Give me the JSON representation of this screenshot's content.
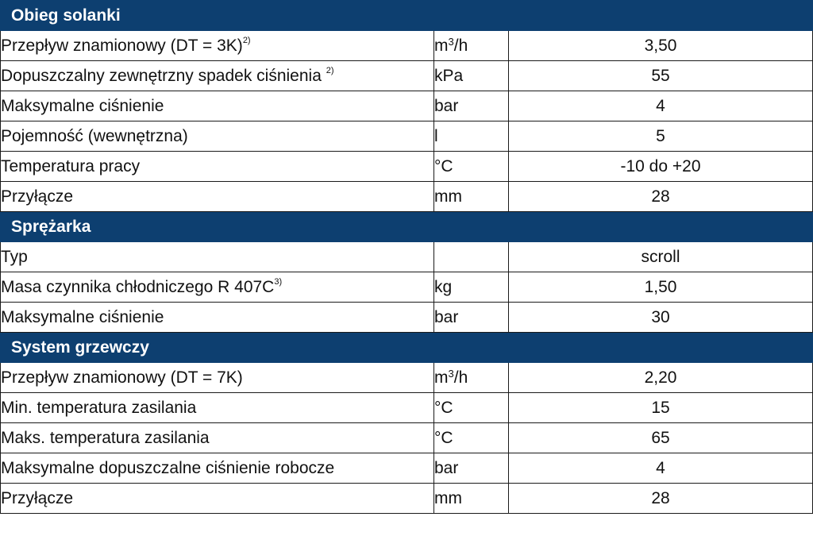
{
  "sections": [
    {
      "title": "Obieg solanki",
      "rows": [
        {
          "name": "Przepływ znamionowy (DT = 3K)",
          "note": "2)",
          "unit": "m",
          "unit_sup": "3",
          "unit_tail": "/h",
          "value": "3,50"
        },
        {
          "name": "Dopuszczalny zewnętrzny spadek ciśnienia ",
          "note": "2)",
          "unit": "kPa",
          "unit_sup": "",
          "unit_tail": "",
          "value": "55"
        },
        {
          "name": "Maksymalne ciśnienie",
          "note": "",
          "unit": "bar",
          "unit_sup": "",
          "unit_tail": "",
          "value": "4"
        },
        {
          "name": "Pojemność (wewnętrzna)",
          "note": "",
          "unit": "l",
          "unit_sup": "",
          "unit_tail": "",
          "value": "5"
        },
        {
          "name": "Temperatura pracy",
          "note": "",
          "unit": "°C",
          "unit_sup": "",
          "unit_tail": "",
          "value": "-10 do +20"
        },
        {
          "name": "Przyłącze",
          "note": "",
          "unit": "mm",
          "unit_sup": "",
          "unit_tail": "",
          "value": "28"
        }
      ]
    },
    {
      "title": "Sprężarka",
      "rows": [
        {
          "name": "Typ",
          "note": "",
          "unit": "",
          "unit_sup": "",
          "unit_tail": "",
          "value": "scroll"
        },
        {
          "name": "Masa czynnika chłodniczego R 407C",
          "note": "3)",
          "unit": "kg",
          "unit_sup": "",
          "unit_tail": "",
          "value": "1,50"
        },
        {
          "name": "Maksymalne ciśnienie",
          "note": "",
          "unit": "bar",
          "unit_sup": "",
          "unit_tail": "",
          "value": "30"
        }
      ]
    },
    {
      "title": "System grzewczy",
      "rows": [
        {
          "name": "Przepływ znamionowy (DT = 7K)",
          "note": "",
          "unit": "m",
          "unit_sup": "3",
          "unit_tail": "/h",
          "value": "2,20"
        },
        {
          "name": "Min. temperatura zasilania",
          "note": "",
          "unit": "°C",
          "unit_sup": "",
          "unit_tail": "",
          "value": "15"
        },
        {
          "name": "Maks. temperatura zasilania",
          "note": "",
          "unit": "°C",
          "unit_sup": "",
          "unit_tail": "",
          "value": "65"
        },
        {
          "name": "Maksymalne dopuszczalne ciśnienie robocze",
          "note": "",
          "unit": "bar",
          "unit_sup": "",
          "unit_tail": "",
          "value": "4"
        },
        {
          "name": "Przyłącze",
          "note": "",
          "unit": "mm",
          "unit_sup": "",
          "unit_tail": "",
          "value": "28"
        }
      ]
    }
  ],
  "colors": {
    "section_header_bg": "#0d3f70",
    "section_header_text": "#ffffff",
    "border": "#1a1a1a"
  }
}
